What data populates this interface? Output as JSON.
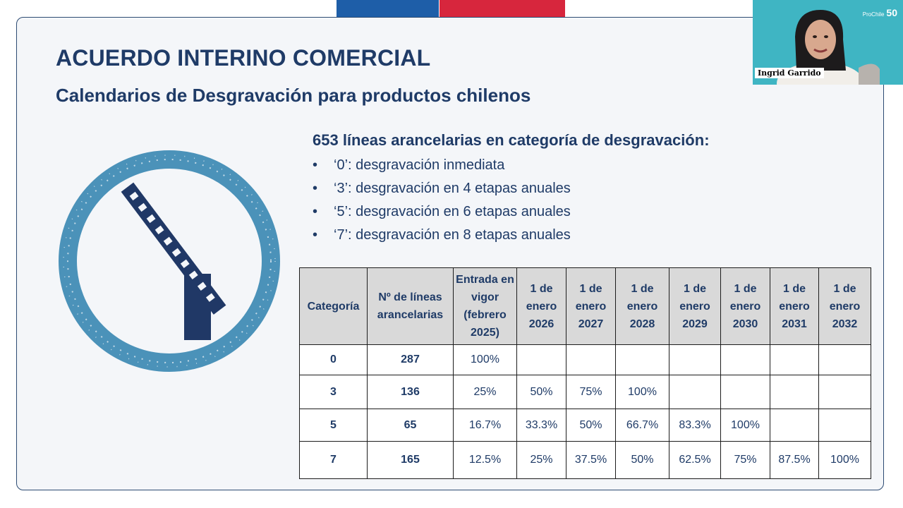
{
  "slide": {
    "title": "ACUERDO INTERINO COMERCIAL",
    "subtitle": "Calendarios de Desgravación para productos chilenos",
    "heading": "653 líneas arancelarias en categoría de desgravación:",
    "bullets": [
      "‘0’: desgravación inmediata",
      "‘3’: desgravación en 4 etapas anuales",
      "‘5’: desgravación en 6 etapas anuales",
      "‘7’: desgravación en 8 etapas anuales"
    ],
    "emblem_icon": "barrier-gate-icon"
  },
  "table": {
    "headers": [
      "Categoría",
      "Nº de líneas arancelarias",
      "Entrada en vigor (febrero 2025)",
      "1 de enero 2026",
      "1 de enero 2027",
      "1 de enero 2028",
      "1 de enero 2029",
      "1 de enero 2030",
      "1 de enero 2031",
      "1 de enero 2032"
    ],
    "rows": [
      [
        "0",
        "287",
        "100%",
        "",
        "",
        "",
        "",
        "",
        "",
        ""
      ],
      [
        "3",
        "136",
        "25%",
        "50%",
        "75%",
        "100%",
        "",
        "",
        "",
        ""
      ],
      [
        "5",
        "65",
        "16.7%",
        "33.3%",
        "50%",
        "66.7%",
        "83.3%",
        "100%",
        "",
        ""
      ],
      [
        "7",
        "165",
        "12.5%",
        "25%",
        "37.5%",
        "50%",
        "62.5%",
        "75%",
        "87.5%",
        "100%"
      ]
    ]
  },
  "webcam": {
    "participant_name": "Ingrid Garrido",
    "brand": "ProChile",
    "brand_number": "50"
  },
  "colors": {
    "navy": "#1f3b67",
    "emblem_ring": "#4b92b9",
    "emblem_barrier": "#203866",
    "flag_blue": "#1e5ea8",
    "flag_red": "#d7263d",
    "webcam_bg": "#3fb5c3",
    "header_gray": "#d9d9d9"
  }
}
